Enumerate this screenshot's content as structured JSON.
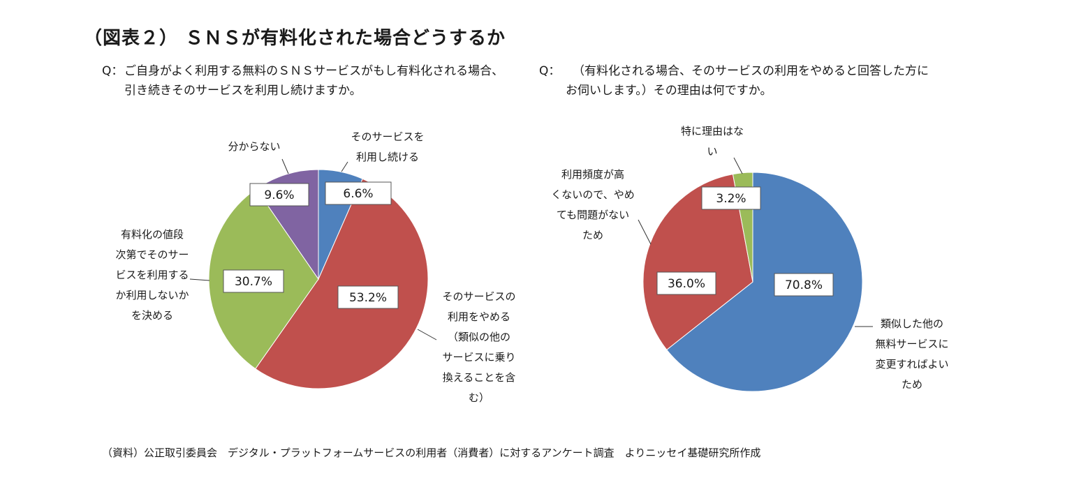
{
  "title": "（図表２） ＳＮＳが有料化された場合どうするか",
  "source": "（資料）公正取引委員会　デジタル・プラットフォームサービスの利用者（消費者）に対するアンケート調査　よりニッセイ基礎研究所作成",
  "chart_data": [
    {
      "type": "pie",
      "question": {
        "mark": "Q：",
        "lines": [
          "ご自身がよく利用する無料のＳＮＳサービスがもし有料化される場合、",
          "引き続きそのサービスを利用し続けますか。"
        ]
      },
      "slices": [
        {
          "label": "そのサービスを利用し続ける",
          "label_lines": [
            "そのサービスを",
            "利用し続ける"
          ],
          "value": 6.6,
          "value_label": "6.6%",
          "color": "#4F81BD"
        },
        {
          "label": "そのサービスの利用をやめる（類似の他のサービスに乗り換えることを含む）",
          "label_lines": [
            "そのサービスの",
            "利用をやめる",
            "（類似の他の",
            "サービスに乗り",
            "換えることを含",
            "む）"
          ],
          "value": 53.2,
          "value_label": "53.2%",
          "color": "#C0504D"
        },
        {
          "label": "有料化の値段次第でそのサービスを利用するか利用しないかを決める",
          "label_lines": [
            "有料化の値段",
            "次第でそのサー",
            "ビスを利用する",
            "か利用しないか",
            "を決める"
          ],
          "value": 30.7,
          "value_label": "30.7%",
          "color": "#9BBB59"
        },
        {
          "label": "分からない",
          "label_lines": [
            "分からない"
          ],
          "value": 9.6,
          "value_label": "9.6%",
          "color": "#8064A2"
        }
      ]
    },
    {
      "type": "pie",
      "question": {
        "mark": "Q：",
        "lines": [
          "（有料化される場合、そのサービスの利用をやめると回答した方に",
          "お伺いします。）その理由は何ですか。"
        ]
      },
      "slices": [
        {
          "label": "類似した他の無料サービスに変更すればよいため",
          "label_lines": [
            "類似した他の",
            "無料サービスに",
            "変更すればよい",
            "ため"
          ],
          "value": 70.8,
          "value_label": "70.8%",
          "color": "#4F81BD"
        },
        {
          "label": "利用頻度が高くないので、やめても問題がないため",
          "label_lines": [
            "利用頻度が高",
            "くないので、やめ",
            "ても問題がない",
            "ため"
          ],
          "value": 36.0,
          "value_label": "36.0%",
          "color": "#C0504D"
        },
        {
          "label": "特に理由はない",
          "label_lines": [
            "特に理由はな",
            "い"
          ],
          "value": 3.2,
          "value_label": "3.2%",
          "color": "#9BBB59"
        }
      ]
    }
  ]
}
